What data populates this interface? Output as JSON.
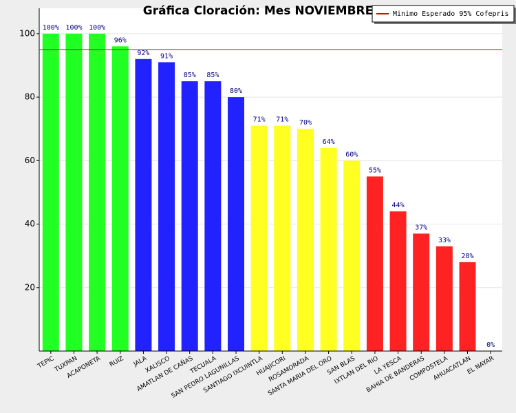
{
  "chart_data": {
    "type": "bar",
    "title": "Gráfica Cloración: Mes NOVIEMBRE",
    "categories": [
      "TEPIC",
      "TUXPAN",
      "ACAPONETA",
      "RUIZ",
      "JALA",
      "XALISCO",
      "AMATLAN DE CAÑAS",
      "TECUALA",
      "SAN PEDRO LAGUNILLAS",
      "SANTIAGO IXCUINTLA",
      "HUAJICORI",
      "ROSAMORADA",
      "SANTA MARIA DEL ORO",
      "SAN BLAS",
      "IXTLAN DEL RIO",
      "LA YESCA",
      "BAHIA DE BANDERAS",
      "COMPOSTELA",
      "AHUACATLAN",
      "EL NAYAR"
    ],
    "values": [
      100,
      100,
      100,
      96,
      92,
      91,
      85,
      85,
      80,
      71,
      71,
      70,
      64,
      60,
      55,
      44,
      37,
      33,
      28,
      0
    ],
    "value_labels": [
      "100%",
      "100%",
      "100%",
      "96%",
      "92%",
      "91%",
      "85%",
      "85%",
      "80%",
      "71%",
      "71%",
      "70%",
      "64%",
      "60%",
      "55%",
      "44%",
      "37%",
      "33%",
      "28%",
      "0%"
    ],
    "colors": [
      "#22ff22",
      "#22ff22",
      "#22ff22",
      "#22ff22",
      "#2222ff",
      "#2222ff",
      "#2222ff",
      "#2222ff",
      "#2222ff",
      "#ffff22",
      "#ffff22",
      "#ffff22",
      "#ffff22",
      "#ffff22",
      "#ff2222",
      "#ff2222",
      "#ff2222",
      "#ff2222",
      "#ff2222",
      "#ff2222"
    ],
    "reference_line": {
      "value": 95,
      "label": "Minimo Esperado 95% Cofepris",
      "color": "#dd0000"
    },
    "ylim": [
      0,
      108
    ],
    "yticks": [
      20,
      40,
      60,
      80,
      100
    ],
    "grid": true
  }
}
